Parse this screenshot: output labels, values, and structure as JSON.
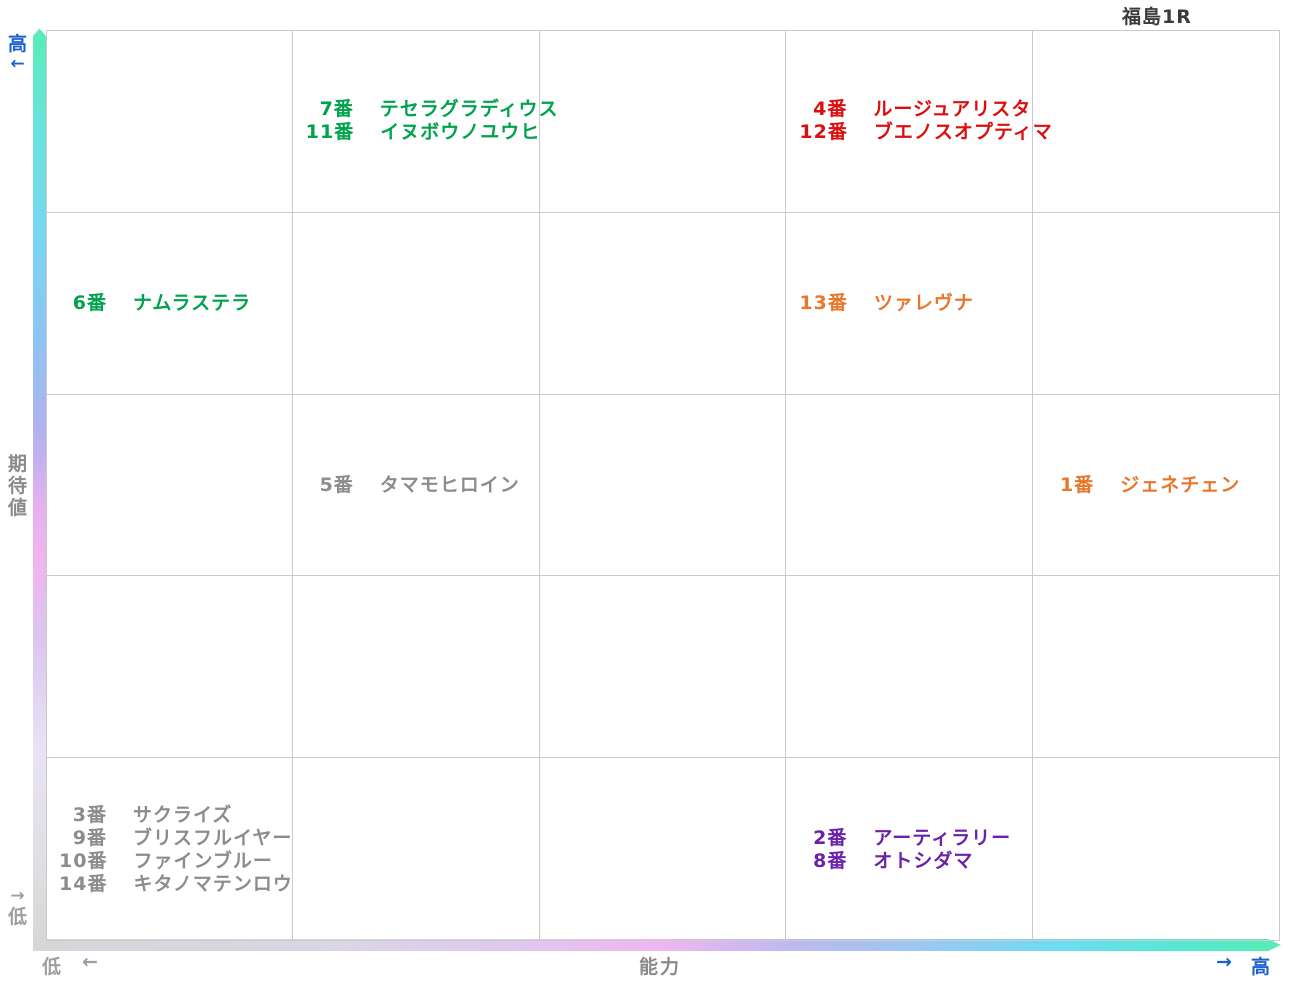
{
  "title": "福島1R",
  "y_axis": {
    "label": "期待値",
    "high": "高",
    "high_arrow": "←",
    "low": "低",
    "low_arrow": "→"
  },
  "x_axis": {
    "label": "能力",
    "low": "低",
    "low_arrow": "←",
    "high": "高",
    "high_arrow": "→"
  },
  "colors": {
    "green": "#00A24D",
    "red": "#DD0E0E",
    "orange": "#E8772C",
    "gray": "#8C8C8C",
    "purple": "#6B22A8",
    "axis_blue": "#1B62CF",
    "axis_gray": "#9E9E9E",
    "label_gray": "#8A8A8A",
    "title_gray": "#3B3B3B",
    "gridline": "#CACACA",
    "bar_high_mint": "#57EDB4",
    "bar_cyan": "#6ADDF0",
    "bar_blue": "#8FC3F2",
    "bar_periwinkle": "#B2B2EC",
    "bar_pink": "#F2B4EE",
    "bar_lavender": "#D9C6F1",
    "bar_low_gray": "#D6D6D8"
  },
  "chart_data": {
    "type": "scatter",
    "title": "福島1R",
    "xlabel": "能力",
    "ylabel": "期待値",
    "x_range": [
      "低",
      "高"
    ],
    "y_range": [
      "低",
      "高"
    ],
    "grid": {
      "cols": 5,
      "rows": 5
    },
    "legend": "row 1 = highest 期待値 (expectation), col 5 = highest 能力 (ability)",
    "cells": [
      {
        "col": 2,
        "row": 1,
        "color": "green",
        "entries": [
          {
            "num": "7番",
            "name": "テセラグラディウス"
          },
          {
            "num": "11番",
            "name": "イヌボウノユウヒ"
          }
        ]
      },
      {
        "col": 4,
        "row": 1,
        "color": "red",
        "entries": [
          {
            "num": "4番",
            "name": "ルージュアリスタ"
          },
          {
            "num": "12番",
            "name": "ブエノスオプティマ"
          }
        ]
      },
      {
        "col": 1,
        "row": 2,
        "color": "green",
        "entries": [
          {
            "num": "6番",
            "name": "ナムラステラ"
          }
        ]
      },
      {
        "col": 4,
        "row": 2,
        "color": "orange",
        "entries": [
          {
            "num": "13番",
            "name": "ツァレヴナ"
          }
        ]
      },
      {
        "col": 2,
        "row": 3,
        "color": "gray",
        "entries": [
          {
            "num": "5番",
            "name": "タマモヒロイン"
          }
        ]
      },
      {
        "col": 5,
        "row": 3,
        "color": "orange",
        "entries": [
          {
            "num": "1番",
            "name": "ジェネチェン"
          }
        ]
      },
      {
        "col": 1,
        "row": 5,
        "color": "gray",
        "entries": [
          {
            "num": "3番",
            "name": "サクライズ"
          },
          {
            "num": "9番",
            "name": "ブリスフルイヤー"
          },
          {
            "num": "10番",
            "name": "ファインブルー"
          },
          {
            "num": "14番",
            "name": "キタノマテンロウ"
          }
        ]
      },
      {
        "col": 4,
        "row": 5,
        "color": "purple",
        "entries": [
          {
            "num": "2番",
            "name": "アーティラリー"
          },
          {
            "num": "8番",
            "name": "オトシダマ"
          }
        ]
      }
    ]
  }
}
